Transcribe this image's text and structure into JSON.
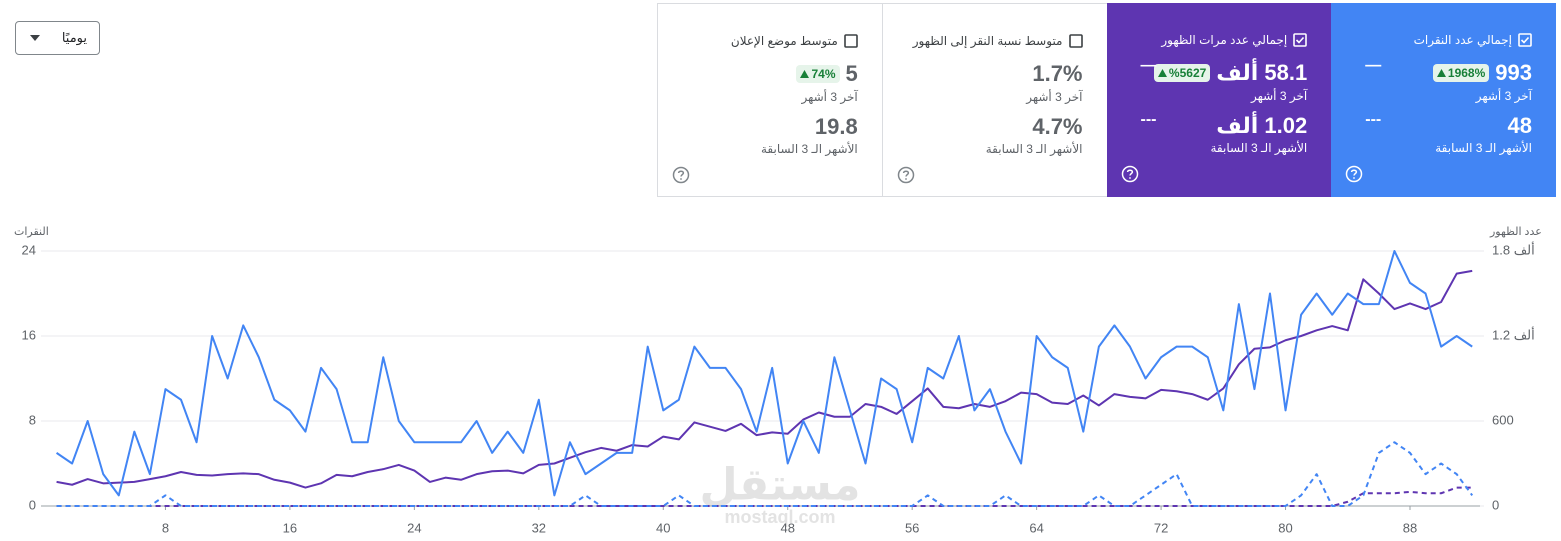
{
  "dropdown": "يوميًا",
  "cards": [
    {
      "title": "إجمالي عدد النقرات",
      "checked": true,
      "color": "#4285f4",
      "value": "993",
      "change": "1968%",
      "period": "آخر 3 أشهر",
      "prev_value": "48",
      "prev_period": "الأشهر الـ 3 السابقة",
      "trend": "—",
      "prev_trend": "---"
    },
    {
      "title": "إجمالي عدد مرات الظهور",
      "checked": true,
      "color": "#5e35b1",
      "value": "58.1 ألف",
      "change": "%5627",
      "period": "آخر 3 أشهر",
      "prev_value": "1.02 ألف",
      "prev_period": "الأشهر الـ 3 السابقة",
      "trend": "—",
      "prev_trend": "---"
    },
    {
      "title": "متوسط نسبة النقر إلى الظهور",
      "checked": false,
      "value": "1.7%",
      "period": "آخر 3 أشهر",
      "prev_value": "4.7%",
      "prev_period": "الأشهر الـ 3 السابقة"
    },
    {
      "title": "متوسط موضع الإعلان",
      "checked": false,
      "value": "5",
      "change": "74%",
      "period": "آخر 3 أشهر",
      "prev_value": "19.8",
      "prev_period": "الأشهر الـ 3 السابقة"
    }
  ],
  "watermark": {
    "text": "مستقل",
    "url": "mostaql.com"
  },
  "chart_data": {
    "type": "line",
    "y_label": "النقرات",
    "y2_label": "عدد الظهور",
    "x": [
      1,
      2,
      3,
      4,
      5,
      6,
      7,
      8,
      9,
      10,
      11,
      12,
      13,
      14,
      15,
      16,
      17,
      18,
      19,
      20,
      21,
      22,
      23,
      24,
      25,
      26,
      27,
      28,
      29,
      30,
      31,
      32,
      33,
      34,
      35,
      36,
      37,
      38,
      39,
      40,
      41,
      42,
      43,
      44,
      45,
      46,
      47,
      48,
      49,
      50,
      51,
      52,
      53,
      54,
      55,
      56,
      57,
      58,
      59,
      60,
      61,
      62,
      63,
      64,
      65,
      66,
      67,
      68,
      69,
      70,
      71,
      72,
      73,
      74,
      75,
      76,
      77,
      78,
      79,
      80,
      81,
      82,
      83,
      84,
      85,
      86,
      87,
      88,
      89,
      90,
      91,
      92
    ],
    "xlim": [
      0,
      92.5
    ],
    "xticks": [
      8,
      16,
      24,
      32,
      40,
      48,
      56,
      64,
      72,
      80,
      88
    ],
    "ylim": [
      0,
      24
    ],
    "yticks": [
      0,
      8,
      16,
      24
    ],
    "y2lim": [
      0,
      1800
    ],
    "y2ticks": [
      0,
      600,
      {
        "value": 1200,
        "label": "1.2 ألف"
      },
      {
        "value": 1800,
        "label": "1.8 ألف"
      }
    ],
    "grid": true,
    "series": [
      {
        "color": "#4285f4",
        "dash": false,
        "axis": "y",
        "values": [
          5,
          4,
          8,
          3,
          1,
          7,
          3,
          11,
          10,
          6,
          16,
          12,
          17,
          14,
          10,
          9,
          7,
          13,
          11,
          6,
          6,
          14,
          8,
          6,
          6,
          6,
          6,
          8,
          5,
          7,
          5,
          10,
          1,
          6,
          3,
          4,
          5,
          5,
          15,
          9,
          10,
          15,
          13,
          13,
          11,
          7,
          13,
          4,
          8,
          5,
          14,
          9,
          4,
          12,
          11,
          6,
          13,
          12,
          16,
          9,
          11,
          7,
          4,
          16,
          14,
          13,
          7,
          15,
          17,
          15,
          12,
          14,
          15,
          15,
          14,
          9,
          19,
          11,
          20,
          9,
          18,
          20,
          18,
          20,
          19,
          19,
          24,
          21,
          20,
          15,
          16,
          15
        ]
      },
      {
        "color": "#5e35b1",
        "dash": false,
        "axis": "y2",
        "values": [
          170,
          150,
          190,
          160,
          165,
          170,
          190,
          210,
          240,
          220,
          215,
          225,
          230,
          225,
          185,
          165,
          130,
          160,
          220,
          210,
          240,
          260,
          290,
          250,
          170,
          200,
          185,
          225,
          245,
          250,
          230,
          290,
          300,
          340,
          380,
          410,
          390,
          430,
          420,
          490,
          470,
          590,
          560,
          530,
          580,
          500,
          520,
          510,
          610,
          660,
          630,
          630,
          720,
          700,
          650,
          740,
          830,
          700,
          690,
          720,
          700,
          740,
          800,
          790,
          730,
          720,
          780,
          710,
          790,
          770,
          760,
          820,
          810,
          790,
          750,
          830,
          1000,
          1110,
          1120,
          1170,
          1200,
          1240,
          1270,
          1240,
          1600,
          1500,
          1390,
          1430,
          1390,
          1440,
          1640,
          1660
        ]
      },
      {
        "color": "#4285f4",
        "dash": true,
        "axis": "y",
        "values": [
          0,
          0,
          0,
          0,
          0,
          0,
          0,
          1,
          0,
          0,
          0,
          0,
          0,
          0,
          0,
          0,
          0,
          0,
          0,
          0,
          0,
          0,
          0,
          0,
          0,
          0,
          0,
          0,
          0,
          0,
          0,
          0,
          0,
          0,
          1,
          0,
          0,
          0,
          0,
          0,
          1,
          0,
          0,
          0,
          0,
          0,
          0,
          0,
          0,
          0,
          0,
          0,
          0,
          0,
          0,
          0,
          1,
          0,
          0,
          0,
          0,
          1,
          0,
          0,
          0,
          0,
          0,
          1,
          0,
          0,
          1,
          2,
          3,
          0,
          0,
          0,
          0,
          0,
          0,
          0,
          1,
          3,
          0,
          0,
          1,
          5,
          6,
          5,
          3,
          4,
          3,
          1
        ]
      },
      {
        "color": "#5e35b1",
        "dash": true,
        "axis": "y2",
        "values": [
          0,
          0,
          0,
          0,
          0,
          0,
          0,
          0,
          0,
          0,
          0,
          0,
          0,
          0,
          0,
          0,
          0,
          0,
          0,
          0,
          0,
          0,
          0,
          0,
          0,
          0,
          0,
          0,
          0,
          0,
          0,
          0,
          0,
          0,
          0,
          0,
          0,
          0,
          0,
          0,
          0,
          0,
          0,
          0,
          0,
          0,
          0,
          0,
          0,
          0,
          0,
          0,
          0,
          0,
          0,
          0,
          0,
          0,
          0,
          0,
          0,
          0,
          0,
          0,
          0,
          0,
          0,
          0,
          0,
          0,
          0,
          0,
          0,
          0,
          0,
          0,
          0,
          0,
          0,
          0,
          0,
          0,
          0,
          30,
          90,
          90,
          90,
          100,
          90,
          90,
          130,
          130
        ]
      }
    ]
  }
}
